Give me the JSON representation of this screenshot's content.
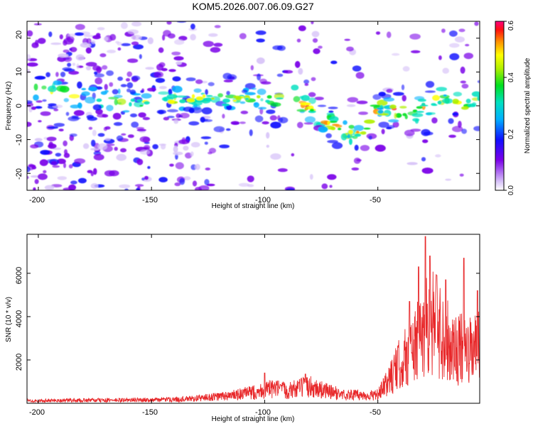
{
  "title": "KOM5.2026.007.06.09.G27",
  "chart_data": [
    {
      "type": "heatmap",
      "id": "spectrogram",
      "xlabel": "Height of straight line (km)",
      "ylabel": "Frequency (Hz)",
      "xlim": [
        -205,
        -5
      ],
      "ylim": [
        -25,
        25
      ],
      "xticks": [
        {
          "value": -200,
          "label": "-200"
        },
        {
          "value": -150,
          "label": "-150"
        },
        {
          "value": -100,
          "label": "-100"
        },
        {
          "value": -50,
          "label": "-50"
        }
      ],
      "yticks": [
        {
          "value": 20,
          "label": "20"
        },
        {
          "value": 10,
          "label": "10"
        },
        {
          "value": 0,
          "label": "0"
        },
        {
          "value": -10,
          "label": "-10"
        },
        {
          "value": -20,
          "label": "-20"
        }
      ],
      "colorbar": {
        "label": "Normalized spectral amplitude",
        "range": [
          0,
          0.6
        ],
        "ticks": [
          {
            "value": 0.0,
            "label": "0.0"
          },
          {
            "value": 0.2,
            "label": "0.2"
          },
          {
            "value": 0.4,
            "label": "0.4"
          },
          {
            "value": 0.6,
            "label": "0.6"
          }
        ]
      },
      "ridge": [
        [
          -200,
          5
        ],
        [
          -185,
          3
        ],
        [
          -160,
          1
        ],
        [
          -150,
          1
        ],
        [
          -140,
          2
        ],
        [
          -130,
          2
        ],
        [
          -115,
          2
        ],
        [
          -105,
          2
        ],
        [
          -95,
          2
        ],
        [
          -88,
          3
        ],
        [
          -80,
          -1
        ],
        [
          -72,
          -5
        ],
        [
          -66,
          -7
        ],
        [
          -58,
          -9
        ],
        [
          -50,
          -1
        ],
        [
          -44,
          -1
        ],
        [
          -35,
          -2
        ],
        [
          -25,
          1
        ],
        [
          -20,
          3
        ],
        [
          -12,
          0
        ],
        [
          -5,
          1
        ]
      ]
    },
    {
      "type": "line",
      "id": "snr",
      "xlabel": "Height of straight line (km)",
      "ylabel": "SNR (10 * v/v)",
      "xlim": [
        -205,
        -5
      ],
      "ylim": [
        0,
        7800
      ],
      "xticks": [
        {
          "value": -200,
          "label": "-200"
        },
        {
          "value": -150,
          "label": "-150"
        },
        {
          "value": -100,
          "label": "-100"
        },
        {
          "value": -50,
          "label": "-50"
        }
      ],
      "yticks": [
        {
          "value": 2000,
          "label": "2000"
        },
        {
          "value": 4000,
          "label": "4000"
        },
        {
          "value": 6000,
          "label": "6000"
        }
      ],
      "color": "#e8282a",
      "envelope": [
        [
          -205,
          150
        ],
        [
          -190,
          170
        ],
        [
          -170,
          180
        ],
        [
          -150,
          200
        ],
        [
          -135,
          250
        ],
        [
          -125,
          350
        ],
        [
          -115,
          450
        ],
        [
          -105,
          650
        ],
        [
          -100,
          800
        ],
        [
          -95,
          850
        ],
        [
          -90,
          750
        ],
        [
          -85,
          900
        ],
        [
          -80,
          1000
        ],
        [
          -75,
          800
        ],
        [
          -70,
          650
        ],
        [
          -65,
          500
        ],
        [
          -60,
          500
        ],
        [
          -55,
          450
        ],
        [
          -50,
          500
        ],
        [
          -47,
          1000
        ],
        [
          -44,
          1600
        ],
        [
          -40,
          2400
        ],
        [
          -36,
          3000
        ],
        [
          -32,
          3700
        ],
        [
          -29,
          4600
        ],
        [
          -27,
          5100
        ],
        [
          -25,
          4800
        ],
        [
          -22,
          4200
        ],
        [
          -19,
          3700
        ],
        [
          -16,
          3300
        ],
        [
          -13,
          3200
        ],
        [
          -10,
          3000
        ],
        [
          -7,
          3300
        ],
        [
          -5,
          3600
        ]
      ],
      "peaks": [
        [
          -100,
          1400
        ],
        [
          -82,
          1350
        ],
        [
          -36,
          4700
        ],
        [
          -32,
          6300
        ],
        [
          -29,
          7700
        ],
        [
          -27,
          6800
        ],
        [
          -24,
          5900
        ],
        [
          -20,
          5700
        ],
        [
          -12,
          6700
        ],
        [
          -6,
          5200
        ]
      ]
    }
  ]
}
